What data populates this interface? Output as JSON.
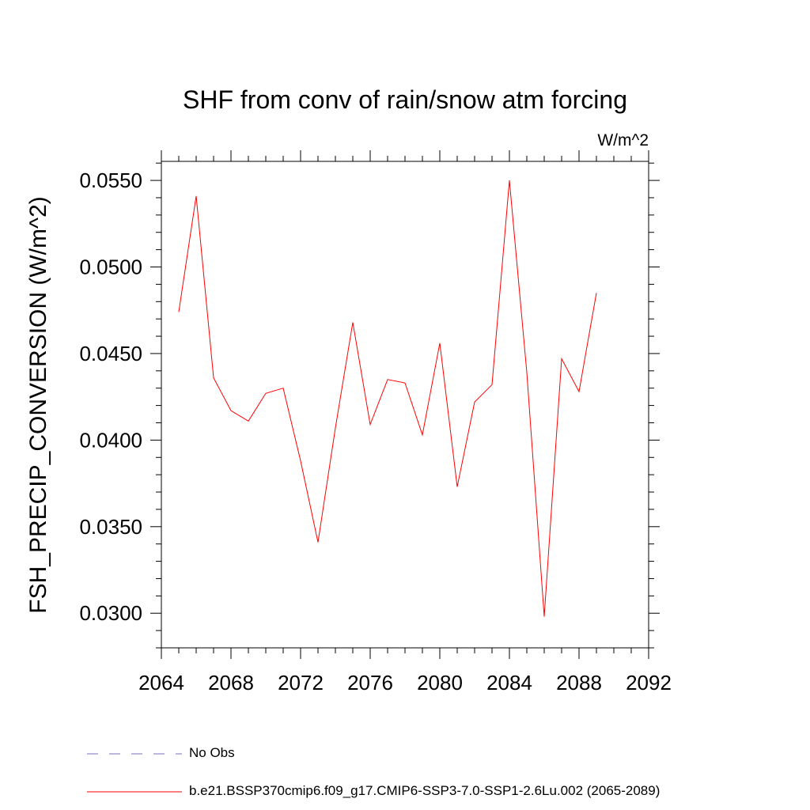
{
  "chart_data": {
    "type": "line",
    "title": "SHF from conv of rain/snow atm forcing",
    "units": "W/m^2",
    "xlabel": "",
    "ylabel": "FSH_PRECIP_CONVERSION  (W/m^2)",
    "xlim": [
      2064,
      2092
    ],
    "ylim": [
      0.028,
      0.0561
    ],
    "x_ticks": [
      2064,
      2068,
      2072,
      2076,
      2080,
      2084,
      2088,
      2092
    ],
    "y_ticks": [
      0.03,
      0.035,
      0.04,
      0.045,
      0.05,
      0.055
    ],
    "y_tick_labels": [
      "0.0300",
      "0.0350",
      "0.0400",
      "0.0450",
      "0.0500",
      "0.0550"
    ],
    "grid": false,
    "legend_position": "bottom",
    "x": [
      2065,
      2066,
      2067,
      2068,
      2069,
      2070,
      2071,
      2072,
      2073,
      2074,
      2075,
      2076,
      2077,
      2078,
      2079,
      2080,
      2081,
      2082,
      2083,
      2084,
      2085,
      2086,
      2087,
      2088,
      2089
    ],
    "series": [
      {
        "name": "b.e21.BSSP370cmip6.f09_g17.CMIP6-SSP3-7.0-SSP1-2.6Lu.002 (2065-2089)",
        "color": "#ff0000",
        "values": [
          0.0474,
          0.0541,
          0.0436,
          0.0417,
          0.0411,
          0.0427,
          0.043,
          0.0388,
          0.0341,
          0.0407,
          0.0468,
          0.0409,
          0.0435,
          0.0433,
          0.0403,
          0.0456,
          0.0373,
          0.0422,
          0.0432,
          0.055,
          0.0439,
          0.0298,
          0.0447,
          0.0428,
          0.0485
        ]
      }
    ],
    "legend": [
      {
        "label": "No Obs",
        "color": "#7a6fb8",
        "style": "dashed"
      },
      {
        "label": "b.e21.BSSP370cmip6.f09_g17.CMIP6-SSP3-7.0-SSP1-2.6Lu.002 (2065-2089)",
        "color": "#ff0000",
        "style": "solid"
      }
    ]
  }
}
